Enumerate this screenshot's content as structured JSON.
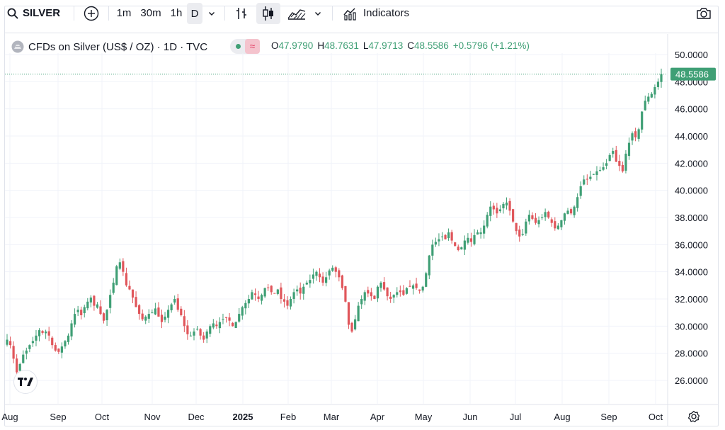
{
  "toolbar": {
    "symbol": "SILVER",
    "intervals": [
      "1m",
      "30m",
      "1h",
      "D"
    ],
    "active_interval": "D",
    "indicators_label": "Indicators",
    "icons": [
      "search-icon",
      "add-symbol-icon",
      "chevron-down-icon",
      "bar-chart-icon",
      "candles-icon",
      "area-chart-icon",
      "chevron-down-icon",
      "indicators-icon",
      "camera-icon"
    ]
  },
  "legend": {
    "title": "CFDs on Silver (US$ / OZ) · 1D · TVC",
    "o_label": "O",
    "o_value": "47.9790",
    "h_label": "H",
    "h_value": "48.7631",
    "l_label": "L",
    "l_value": "47.9713",
    "c_label": "C",
    "c_value": "48.5586",
    "change": "+0.5796 (+1.21%)"
  },
  "colors": {
    "up": "#3f9f75",
    "down": "#e0565b",
    "accent": "#2962ff"
  },
  "chart_data": {
    "type": "candlestick",
    "y_axis_labels": [
      "50.0000",
      "48.0000",
      "46.0000",
      "44.0000",
      "42.0000",
      "40.0000",
      "38.0000",
      "36.0000",
      "34.0000",
      "32.0000",
      "30.0000",
      "28.0000",
      "26.0000"
    ],
    "ylim": [
      24.5,
      51.5
    ],
    "x_axis_labels": [
      "Aug",
      "Sep",
      "Oct",
      "Nov",
      "Dec",
      "2025",
      "Feb",
      "Mar",
      "Apr",
      "May",
      "Jun",
      "Jul",
      "Aug",
      "Sep",
      "Oct"
    ],
    "last_price": 48.5586,
    "last_price_label": "48.5586",
    "close_path": [
      29.0,
      28.6,
      27.6,
      26.6,
      27.2,
      27.9,
      28.2,
      28.6,
      28.9,
      29.3,
      29.7,
      29.5,
      29.6,
      29.3,
      28.6,
      28.2,
      28.1,
      28.5,
      28.9,
      29.3,
      30.2,
      30.9,
      31.2,
      30.8,
      31.4,
      31.8,
      32.1,
      31.5,
      31.6,
      30.9,
      30.4,
      31.2,
      32.3,
      33.2,
      34.4,
      34.7,
      34.0,
      33.0,
      32.7,
      32.1,
      31.4,
      30.9,
      30.5,
      30.7,
      30.9,
      31.0,
      31.3,
      30.7,
      30.3,
      30.7,
      31.2,
      31.6,
      32.0,
      31.2,
      30.8,
      30.0,
      29.4,
      29.3,
      29.6,
      29.8,
      29.3,
      29.0,
      29.6,
      30.0,
      30.2,
      30.0,
      30.3,
      30.5,
      30.6,
      30.4,
      30.0,
      30.3,
      30.9,
      31.4,
      31.7,
      32.0,
      32.5,
      32.3,
      32.0,
      32.3,
      32.8,
      32.8,
      32.5,
      32.4,
      32.7,
      32.0,
      31.8,
      31.5,
      32.0,
      32.5,
      32.7,
      32.4,
      32.9,
      33.2,
      33.4,
      33.8,
      34.0,
      33.6,
      33.2,
      33.6,
      34.1,
      34.3,
      34.0,
      33.6,
      32.8,
      31.8,
      30.1,
      29.6,
      30.5,
      31.5,
      32.0,
      32.5,
      32.4,
      32.2,
      32.0,
      32.9,
      33.2,
      32.7,
      32.2,
      32.0,
      32.3,
      32.5,
      32.5,
      32.3,
      32.8,
      32.9,
      33.0,
      32.8,
      32.6,
      32.9,
      33.9,
      35.2,
      36.0,
      36.2,
      36.4,
      36.6,
      36.4,
      36.9,
      36.3,
      35.9,
      35.6,
      35.8,
      36.3,
      36.5,
      36.2,
      36.7,
      36.9,
      36.9,
      37.4,
      38.2,
      38.8,
      38.6,
      38.3,
      38.6,
      39.0,
      39.1,
      38.5,
      37.7,
      37.0,
      36.6,
      36.8,
      37.7,
      38.2,
      37.9,
      37.6,
      37.8,
      38.0,
      38.4,
      38.0,
      37.6,
      37.2,
      37.4,
      37.8,
      38.3,
      38.5,
      38.3,
      38.8,
      39.5,
      40.3,
      40.8,
      40.8,
      41.0,
      41.2,
      41.4,
      41.5,
      41.7,
      42.0,
      42.6,
      42.9,
      42.1,
      41.8,
      41.4,
      42.7,
      43.5,
      44.2,
      43.9,
      44.5,
      45.8,
      46.6,
      46.9,
      47.1,
      47.6,
      48.0,
      48.5586
    ]
  }
}
